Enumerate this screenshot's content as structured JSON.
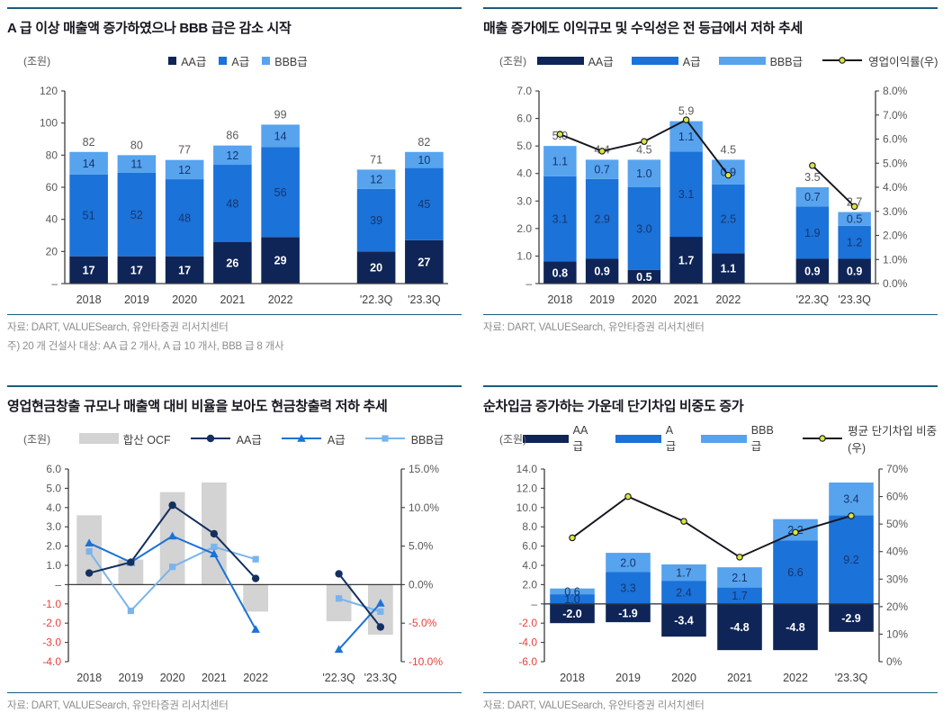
{
  "colors": {
    "aa": "#0f2557",
    "a": "#1b72d8",
    "bbb": "#57a3ee",
    "ocf_bar": "#d3d3d3",
    "black_line": "#15151e",
    "marker_fill": "#d9e63b",
    "aa_line": "#14305f",
    "a_line": "#1b72d8",
    "bbb_line": "#7ab4ec",
    "rule": "#1d5b7e",
    "tick_gray": "#595959",
    "tick_red": "#e8413a",
    "category_label": "#3f3f3f",
    "total_label": "#595959",
    "segment_label_dark": "#16356e",
    "segment_label_white": "#ffffff"
  },
  "chart_data": [
    {
      "type": "bar",
      "title": "A 급 이상 매출액 증가하였으나 BBB 급은 감소 시작",
      "unit_label": "(조원)",
      "legend_style": "square",
      "categories": [
        "2018",
        "2019",
        "2020",
        "2021",
        "2022",
        "'22.3Q",
        "'23.3Q"
      ],
      "gap_after": 4,
      "value_format": "int",
      "bar_series": [
        {
          "name": "AA급",
          "color": "#0f2557",
          "label_color": "#ffffff",
          "label_bold": true,
          "values": [
            17,
            17,
            17,
            26,
            29,
            20,
            27
          ]
        },
        {
          "name": "A급",
          "color": "#1b72d8",
          "label_color": "#16356e",
          "label_bold": false,
          "values": [
            51,
            52,
            48,
            48,
            56,
            39,
            45
          ]
        },
        {
          "name": "BBB급",
          "color": "#57a3ee",
          "label_color": "#16356e",
          "label_bold": false,
          "values": [
            14,
            11,
            12,
            12,
            14,
            12,
            10
          ]
        }
      ],
      "totals": [
        82,
        80,
        77,
        86,
        99,
        71,
        82
      ],
      "left_axis": {
        "min": 0,
        "max": 120,
        "step": 20,
        "format": "int",
        "zero_label": "–"
      },
      "right_axis": null,
      "line_series": [],
      "source": "자료: DART, VALUESearch, 유안타증권 리서치센터",
      "note": "주) 20 개 건설사 대상: AA 급 2 개사, A 급 10 개사, BBB 급 8 개사"
    },
    {
      "type": "bar",
      "title": "매출 증가에도 이익규모 및 수익성은 전 등급에서 저하 추세",
      "unit_label": "(조원)",
      "legend_style": "bar",
      "categories": [
        "2018",
        "2019",
        "2020",
        "2021",
        "2022",
        "'22.3Q",
        "'23.3Q"
      ],
      "gap_after": 4,
      "value_format": "1dp",
      "bar_series": [
        {
          "name": "AA급",
          "color": "#0f2557",
          "label_color": "#ffffff",
          "label_bold": true,
          "values": [
            0.8,
            0.9,
            0.5,
            1.7,
            1.1,
            0.9,
            0.9
          ]
        },
        {
          "name": "A급",
          "color": "#1b72d8",
          "label_color": "#16356e",
          "label_bold": false,
          "values": [
            3.1,
            2.9,
            3.0,
            3.1,
            2.5,
            1.9,
            1.2
          ]
        },
        {
          "name": "BBB급",
          "color": "#57a3ee",
          "label_color": "#16356e",
          "label_bold": false,
          "values": [
            1.1,
            0.7,
            1.0,
            1.1,
            0.9,
            0.7,
            0.5
          ]
        }
      ],
      "totals": [
        5.0,
        4.4,
        4.5,
        5.9,
        4.5,
        3.5,
        2.7
      ],
      "left_axis": {
        "min": 0,
        "max": 7,
        "step": 1,
        "format": "1dp",
        "zero_label": "–"
      },
      "right_axis": {
        "min": 0,
        "max": 8,
        "step": 1,
        "format": "pct1"
      },
      "line_series": [
        {
          "name": "영업이익률(우)",
          "color": "#15151e",
          "marker": "dotcircle",
          "values": [
            6.2,
            5.5,
            5.9,
            6.8,
            4.5,
            4.9,
            3.2
          ]
        }
      ],
      "source": "자료: DART, VALUESearch, 유안타증권 리서치센터",
      "note": null
    },
    {
      "type": "bar+line",
      "title": "영업현금창출 규모나 매출액 대비 비율을 보아도 현금창출력 저하 추세",
      "unit_label": "(조원)",
      "legend_style": "mixed",
      "categories": [
        "2018",
        "2019",
        "2020",
        "2021",
        "2022",
        "'22.3Q",
        "'23.3Q"
      ],
      "gap_after": 4,
      "value_format": "1dp",
      "bar_series": [
        {
          "name": "합산 OCF",
          "color": "#d3d3d3",
          "label_color": null,
          "label_bold": false,
          "values": [
            3.6,
            1.3,
            4.8,
            5.3,
            -1.4,
            -1.9,
            -2.6
          ]
        }
      ],
      "hide_segment_labels": true,
      "totals": null,
      "left_axis": {
        "min": -4,
        "max": 6,
        "step": 1,
        "format": "1dp",
        "zero_label": "–"
      },
      "right_axis": {
        "min": -10,
        "max": 15,
        "step": 5,
        "format": "pct1"
      },
      "line_series": [
        {
          "name": "BBB급",
          "color": "#7ab4ec",
          "marker": "square",
          "values": [
            4.3,
            -3.4,
            2.3,
            4.9,
            3.3,
            -1.8,
            -3.5
          ]
        },
        {
          "name": "A급",
          "color": "#1b72d8",
          "marker": "triangle",
          "values": [
            5.4,
            2.9,
            6.3,
            4.0,
            -5.8,
            -8.4,
            -2.4
          ]
        },
        {
          "name": "AA급",
          "color": "#14305f",
          "marker": "circle",
          "values": [
            1.5,
            2.9,
            10.3,
            6.6,
            0.8,
            1.4,
            -5.5
          ]
        }
      ],
      "legend_line_order": [
        "AA급",
        "A급",
        "BBB급"
      ],
      "source": "자료: DART, VALUESearch, 유안타증권 리서치센터",
      "note": null
    },
    {
      "type": "bar+line",
      "title": "순차입금 증가하는 가운데 단기차입 비중도 증가",
      "unit_label": "(조원)",
      "legend_style": "bar",
      "categories": [
        "2018",
        "2019",
        "2020",
        "2021",
        "2022",
        "'23.3Q"
      ],
      "gap_after": null,
      "value_format": "1dp",
      "bar_series": [
        {
          "name": "AA급",
          "color": "#0f2557",
          "label_color": "#ffffff",
          "label_bold": true,
          "values": [
            -2.0,
            -1.9,
            -3.4,
            -4.8,
            -4.8,
            -2.9
          ]
        },
        {
          "name": "A급",
          "color": "#1b72d8",
          "label_color": "#16356e",
          "label_bold": false,
          "values": [
            1.0,
            3.3,
            2.4,
            1.7,
            6.6,
            9.2
          ]
        },
        {
          "name": "BBB급",
          "color": "#57a3ee",
          "label_color": "#16356e",
          "label_bold": false,
          "values": [
            0.6,
            2.0,
            1.7,
            2.1,
            2.2,
            3.4
          ]
        }
      ],
      "totals": null,
      "left_axis": {
        "min": -6,
        "max": 14,
        "step": 2,
        "format": "1dp",
        "zero_label": "–"
      },
      "right_axis": {
        "min": 0,
        "max": 70,
        "step": 10,
        "format": "pct0"
      },
      "line_series": [
        {
          "name": "평균 단기차입 비중(우)",
          "color": "#15151e",
          "marker": "dotcircle",
          "values": [
            45,
            60,
            51,
            38,
            47,
            53
          ]
        }
      ],
      "source": "자료: DART, VALUESearch, 유안타증권 리서치센터",
      "note": null
    }
  ]
}
